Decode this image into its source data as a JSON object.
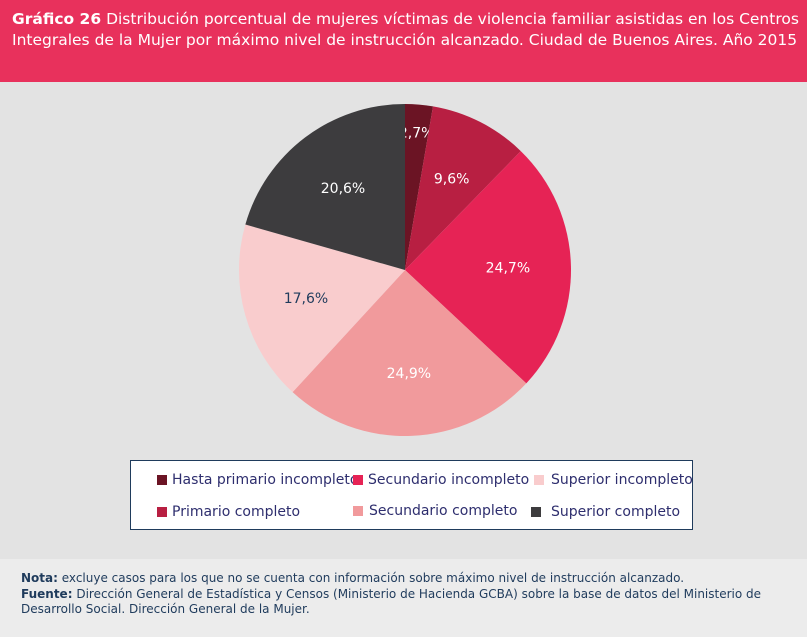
{
  "header": {
    "label": "Gráfico 26",
    "line1": "Distribución porcentual de mujeres víctimas de violencia familiar asistidas en los Centros",
    "line2": "Integrales de la Mujer por máximo nivel de instrucción alcanzado. Ciudad de Buenos Aires. Año 2015",
    "bg_color": "#e8315c"
  },
  "chart_data": {
    "type": "pie",
    "title": "Distribución porcentual de mujeres víctimas de violencia familiar asistidas en los Centros Integrales de la Mujer por máximo nivel de instrucción alcanzado. Ciudad de Buenos Aires. Año 2015",
    "slices": [
      {
        "label": "Hasta primario incompleto",
        "value": 2.7,
        "display": "2,7%",
        "color": "#6b1424"
      },
      {
        "label": "Primario completo",
        "value": 9.6,
        "display": "9,6%",
        "color": "#b81f42"
      },
      {
        "label": "Secundario incompleto",
        "value": 24.7,
        "display": "24,7%",
        "color": "#e62355"
      },
      {
        "label": "Secundario completo",
        "value": 24.9,
        "display": "24,9%",
        "color": "#f19a9c"
      },
      {
        "label": "Superior incompleto",
        "value": 17.6,
        "display": "17,6%",
        "color": "#f9cccd"
      },
      {
        "label": "Superior completo",
        "value": 20.6,
        "display": "20,6%",
        "color": "#3d3c3e"
      }
    ],
    "legend_position": "bottom"
  },
  "legend": {
    "row1": [
      "Hasta primario incompleto",
      "Secundario incompleto",
      "Superior incompleto"
    ],
    "row2": [
      "Primario completo",
      "Secundario completo",
      "Superior completo"
    ]
  },
  "footer": {
    "note_label": "Nota:",
    "note_text": "excluye casos para los que no se cuenta con información sobre máximo nivel de instrucción alcanzado.",
    "source_label": "Fuente:",
    "source_text": "Dirección General de Estadística y Censos (Ministerio de Hacienda GCBA) sobre la base de datos del Ministerio de Desarrollo Social. Dirección General de la Mujer."
  }
}
